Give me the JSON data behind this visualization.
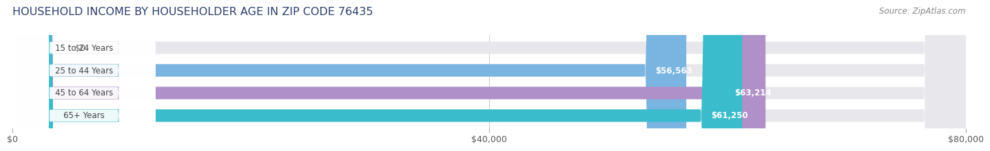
{
  "title": "HOUSEHOLD INCOME BY HOUSEHOLDER AGE IN ZIP CODE 76435",
  "source": "Source: ZipAtlas.com",
  "categories": [
    "15 to 24 Years",
    "25 to 44 Years",
    "45 to 64 Years",
    "65+ Years"
  ],
  "values": [
    0,
    56563,
    63214,
    61250
  ],
  "bar_colors": [
    "#f0a0a0",
    "#7ab4e0",
    "#b090c8",
    "#3abccc"
  ],
  "bar_bg_color": "#e8e8ec",
  "label_texts": [
    "$0",
    "$56,563",
    "$63,214",
    "$61,250"
  ],
  "xlim": [
    0,
    80000
  ],
  "xticks": [
    0,
    40000,
    80000
  ],
  "xticklabels": [
    "$0",
    "$40,000",
    "$80,000"
  ],
  "background_color": "#ffffff",
  "bar_height": 0.55,
  "title_fontsize": 11.5,
  "source_fontsize": 8.5,
  "label_fontsize": 8.5,
  "xtick_fontsize": 9
}
